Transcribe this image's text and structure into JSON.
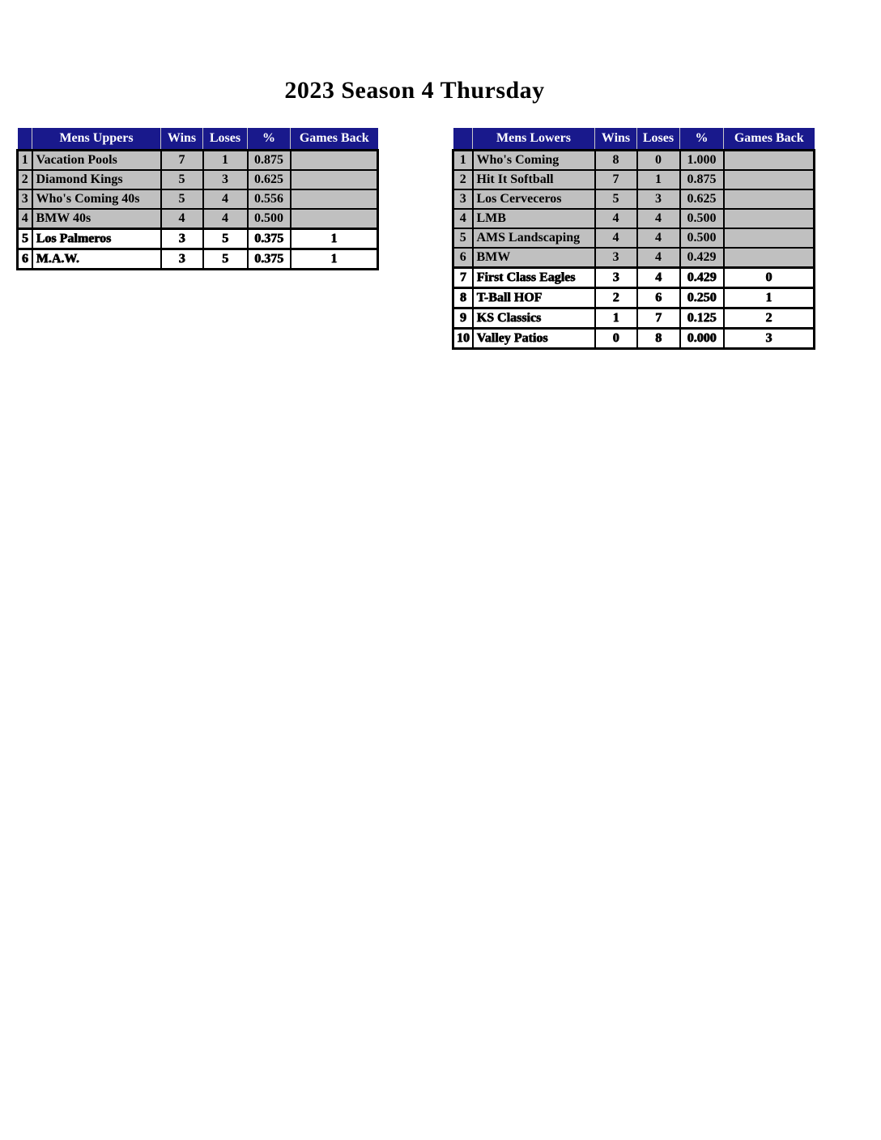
{
  "title": "2023 Season 4 Thursday",
  "colors": {
    "header_bg": "#19198c",
    "header_fg": "#ffffff",
    "row_gray": "#c0c0c0",
    "row_white": "#ffffff",
    "border": "#000000"
  },
  "tables": [
    {
      "name": "Mens Uppers",
      "columns": [
        "",
        "Mens Uppers",
        "Wins",
        "Loses",
        "%",
        "Games Back"
      ],
      "rows": [
        {
          "rank": "1",
          "team": "Vacation Pools",
          "wins": "7",
          "loses": "1",
          "pct": "0.875",
          "gb": "",
          "shade": "gray"
        },
        {
          "rank": "2",
          "team": "Diamond Kings",
          "wins": "5",
          "loses": "3",
          "pct": "0.625",
          "gb": "",
          "shade": "gray"
        },
        {
          "rank": "3",
          "team": "Who's Coming 40s",
          "wins": "5",
          "loses": "4",
          "pct": "0.556",
          "gb": "",
          "shade": "gray"
        },
        {
          "rank": "4",
          "team": "BMW 40s",
          "wins": "4",
          "loses": "4",
          "pct": "0.500",
          "gb": "",
          "shade": "gray"
        },
        {
          "rank": "5",
          "team": "Los Palmeros",
          "wins": "3",
          "loses": "5",
          "pct": "0.375",
          "gb": "1",
          "shade": "white"
        },
        {
          "rank": "6",
          "team": "M.A.W.",
          "wins": "3",
          "loses": "5",
          "pct": "0.375",
          "gb": "1",
          "shade": "white"
        }
      ]
    },
    {
      "name": "Mens Lowers",
      "columns": [
        "",
        "Mens Lowers",
        "Wins",
        "Loses",
        "%",
        "Games Back"
      ],
      "rows": [
        {
          "rank": "1",
          "team": "Who's Coming",
          "wins": "8",
          "loses": "0",
          "pct": "1.000",
          "gb": "",
          "shade": "gray"
        },
        {
          "rank": "2",
          "team": "Hit It Softball",
          "wins": "7",
          "loses": "1",
          "pct": "0.875",
          "gb": "",
          "shade": "gray"
        },
        {
          "rank": "3",
          "team": "Los Cerveceros",
          "wins": "5",
          "loses": "3",
          "pct": "0.625",
          "gb": "",
          "shade": "gray"
        },
        {
          "rank": "4",
          "team": "LMB",
          "wins": "4",
          "loses": "4",
          "pct": "0.500",
          "gb": "",
          "shade": "gray"
        },
        {
          "rank": "5",
          "team": "AMS Landscaping",
          "wins": "4",
          "loses": "4",
          "pct": "0.500",
          "gb": "",
          "shade": "gray"
        },
        {
          "rank": "6",
          "team": "BMW",
          "wins": "3",
          "loses": "4",
          "pct": "0.429",
          "gb": "",
          "shade": "gray"
        },
        {
          "rank": "7",
          "team": "First Class Eagles",
          "wins": "3",
          "loses": "4",
          "pct": "0.429",
          "gb": "0",
          "shade": "white"
        },
        {
          "rank": "8",
          "team": "T-Ball HOF",
          "wins": "2",
          "loses": "6",
          "pct": "0.250",
          "gb": "1",
          "shade": "white"
        },
        {
          "rank": "9",
          "team": "KS Classics",
          "wins": "1",
          "loses": "7",
          "pct": "0.125",
          "gb": "2",
          "shade": "white"
        },
        {
          "rank": "10",
          "team": "Valley Patios",
          "wins": "0",
          "loses": "8",
          "pct": "0.000",
          "gb": "3",
          "shade": "white"
        }
      ]
    }
  ]
}
